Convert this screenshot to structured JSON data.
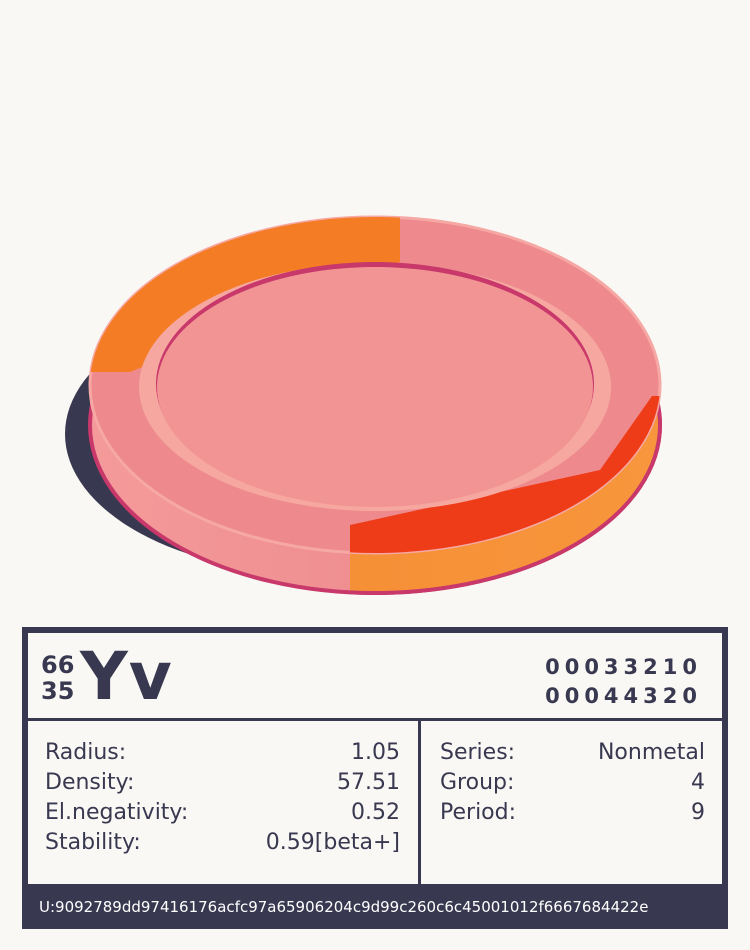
{
  "element": {
    "mass_number": "66",
    "atomic_number": "35",
    "symbol": "Yv",
    "code_line_1": "00033210",
    "code_line_2": "00044320"
  },
  "properties_left": [
    {
      "label": "Radius:",
      "value": "1.05"
    },
    {
      "label": "Density:",
      "value": "57.51"
    },
    {
      "label": "El.negativity:",
      "value": "0.52"
    },
    {
      "label": "Stability:",
      "value": "0.59[beta+]"
    }
  ],
  "properties_right": [
    {
      "label": "Series:",
      "value": "Nonmetal"
    },
    {
      "label": "Group:",
      "value": "4"
    },
    {
      "label": "Period:",
      "value": "9"
    }
  ],
  "uid": "U:9092789dd97416176acfc97a65906204c9d99c260c6c45001012f6667684422e",
  "colors": {
    "dark": "#383850",
    "background": "#faf8f4",
    "coin_face": "#f29494",
    "coin_rim": "#c8386a",
    "orange": "#f47c24",
    "red_orange": "#ee3c18"
  }
}
